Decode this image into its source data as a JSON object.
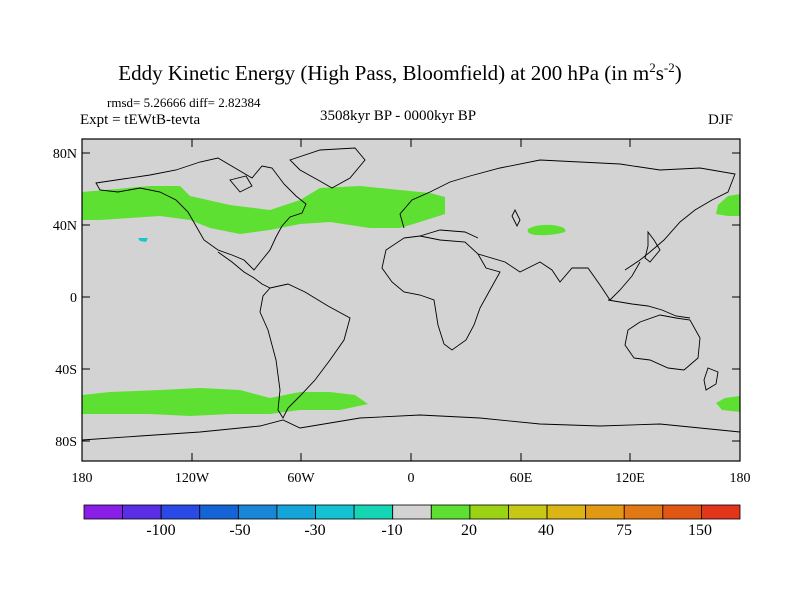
{
  "title": {
    "main": "Eddy Kinetic Energy (High Pass, Bloomfield) at 200 hPa (in m",
    "sup1": "2",
    "s": "s",
    "sup2": "-2",
    "close": ")"
  },
  "stats": {
    "rmsd": "rmsd= 5.26666 diff= 2.82384"
  },
  "experiment": "Expt = tEWtB-tevta",
  "period": "3508kyr BP - 0000kyr BP",
  "season": "DJF",
  "lat_labels": [
    "80N",
    "40N",
    "0",
    "40S",
    "80S"
  ],
  "lon_labels": [
    "180",
    "120W",
    "60W",
    "0",
    "60E",
    "120E",
    "180"
  ],
  "colorbar": {
    "colors": [
      "#8a1de6",
      "#5a2de6",
      "#2a4ae6",
      "#1464d8",
      "#1a86d8",
      "#14a6d8",
      "#14c2d2",
      "#14d6b4",
      "#d3d3d3",
      "#5ee032",
      "#9cd214",
      "#c6c814",
      "#dcb414",
      "#e29a14",
      "#e27814",
      "#e25614",
      "#e2361a"
    ],
    "labels": [
      "-100",
      "-50",
      "-30",
      "-10",
      "20",
      "40",
      "75",
      "150"
    ]
  },
  "map_colors": {
    "background": "#d3d3d3",
    "positive": "#5ee032",
    "negative": "#14c8cc"
  }
}
